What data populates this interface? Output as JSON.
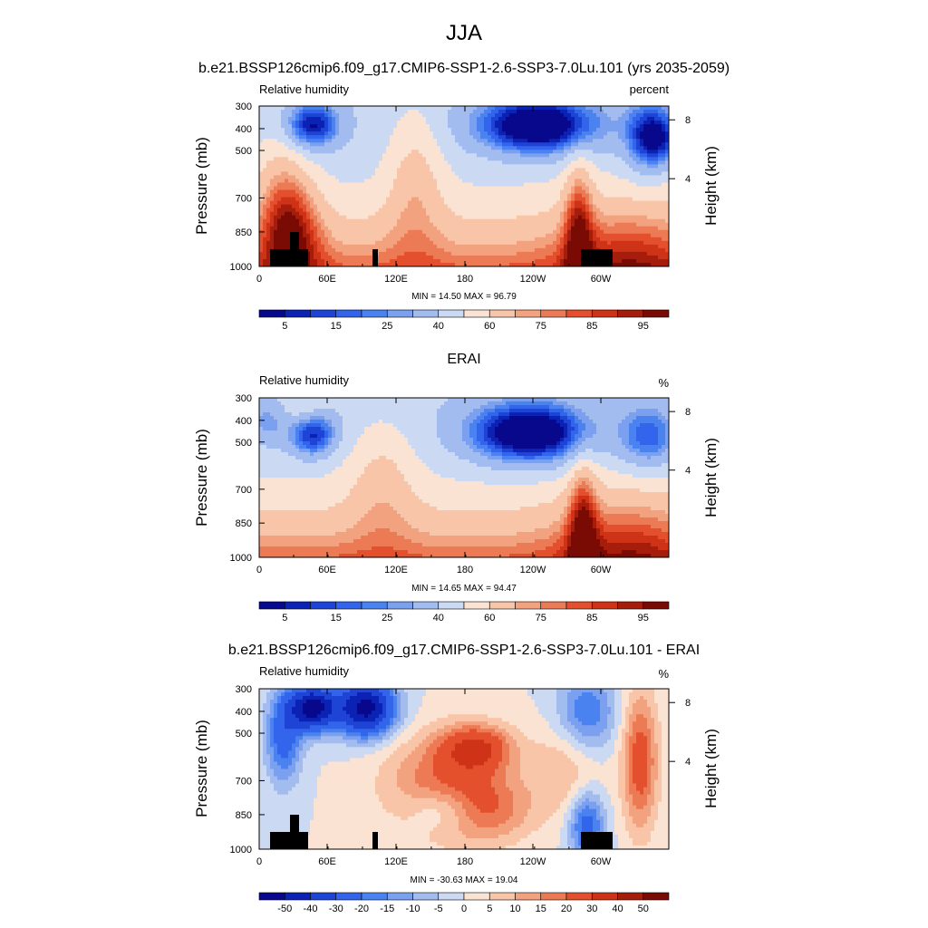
{
  "figure": {
    "title": "JJA",
    "season": "JJA"
  },
  "chart_data": [
    {
      "type": "heatmap",
      "title": "b.e21.BSSP126cmip6.f09_g17.CMIP6-SSP1-2.6-SSP3-7.0Lu.101 (yrs 2035-2059)",
      "variable": "Relative humidity",
      "units": "percent",
      "ylabel": "Pressure (mb)",
      "ylabel_right": "Height (km)",
      "xticks": [
        "0",
        "60E",
        "120E",
        "180",
        "120W",
        "60W"
      ],
      "yticks": [
        "300",
        "400",
        "500",
        "700",
        "850",
        "1000"
      ],
      "yticks_right": [
        "8",
        "4"
      ],
      "min_label": "MIN =  14.50  MAX =  96.79",
      "min": 14.5,
      "max": 96.79,
      "colorbar_labels": [
        "5",
        "15",
        "25",
        "40",
        "60",
        "75",
        "85",
        "95"
      ],
      "has_topography": true
    },
    {
      "type": "heatmap",
      "title": "ERAI",
      "variable": "Relative humidity",
      "units": "%",
      "ylabel": "Pressure (mb)",
      "ylabel_right": "Height (km)",
      "xticks": [
        "0",
        "60E",
        "120E",
        "180",
        "120W",
        "60W"
      ],
      "yticks": [
        "300",
        "400",
        "500",
        "700",
        "850",
        "1000"
      ],
      "yticks_right": [
        "8",
        "4"
      ],
      "min_label": "MIN =  14.65  MAX =  94.47",
      "min": 14.65,
      "max": 94.47,
      "colorbar_labels": [
        "5",
        "15",
        "25",
        "40",
        "60",
        "75",
        "85",
        "95"
      ],
      "has_topography": false
    },
    {
      "type": "heatmap",
      "title": "b.e21.BSSP126cmip6.f09_g17.CMIP6-SSP1-2.6-SSP3-7.0Lu.101 - ERAI",
      "variable": "Relative humidity",
      "units": "%",
      "ylabel": "Pressure (mb)",
      "ylabel_right": "Height (km)",
      "xticks": [
        "0",
        "60E",
        "120E",
        "180",
        "120W",
        "60W"
      ],
      "yticks": [
        "300",
        "400",
        "500",
        "700",
        "850",
        "1000"
      ],
      "yticks_right": [
        "8",
        "4"
      ],
      "min_label": "MIN = -30.63  MAX =  19.04",
      "min": -30.63,
      "max": 19.04,
      "colorbar_labels": [
        "-50",
        "-40",
        "-30",
        "-20",
        "-15",
        "-10",
        "-5",
        "0",
        "5",
        "10",
        "15",
        "20",
        "30",
        "40",
        "50"
      ],
      "has_topography": true
    }
  ],
  "colormap": [
    "#08088c",
    "#0b22b4",
    "#1e44d6",
    "#3264ec",
    "#4a82f0",
    "#7aa0ef",
    "#a3bcef",
    "#cbdaf2",
    "#fbe3d3",
    "#f8c5a9",
    "#f2a27f",
    "#ec7b55",
    "#e4502d",
    "#cf3317",
    "#a71d0b",
    "#7a0a04"
  ]
}
